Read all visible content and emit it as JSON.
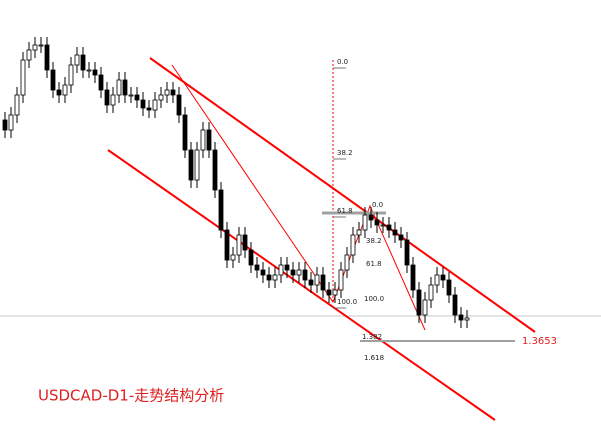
{
  "chart_data": {
    "type": "candlestick",
    "title": "USDCAD-D1-走势结构分析",
    "ylim": [
      1.3377,
      1.4676
    ],
    "level": 1.3653,
    "fib_1": {
      "levels": [
        "0.0",
        "38.2",
        "61.8",
        "100.0"
      ]
    },
    "fib_2": {
      "levels": [
        "0.0",
        "38.2",
        "61.8",
        "100.0",
        "1.382",
        "1.618"
      ]
    },
    "open": [
      1.4316,
      1.4286,
      1.4331,
      1.4391,
      1.4496,
      1.4526,
      1.4541,
      1.4541,
      1.4466,
      1.4406,
      1.4391,
      1.4421,
      1.4481,
      1.4511,
      1.4466,
      1.4466,
      1.4451,
      1.4406,
      1.4361,
      1.4391,
      1.4436,
      1.4391,
      1.4391,
      1.4376,
      1.4352,
      1.4346,
      1.4376,
      1.4391,
      1.4406,
      1.4391,
      1.4331,
      1.4226,
      1.4136,
      1.4226,
      1.4286,
      1.4226,
      1.4106,
      1.3986,
      1.3896,
      1.3911,
      1.3971,
      1.3926,
      1.3881,
      1.3866,
      1.3851,
      1.3836,
      1.3851,
      1.3881,
      1.3866,
      1.3851,
      1.3866,
      1.3836,
      1.3821,
      1.3851,
      1.3806,
      1.3791,
      1.3806,
      1.3866,
      1.3911,
      1.3971,
      1.3986,
      1.4031,
      1.4016,
      1.4001,
      1.4001,
      1.3986,
      1.3971,
      1.3956,
      1.3881,
      1.3806,
      1.3731,
      1.3776,
      1.3821,
      1.3851,
      1.3836,
      1.3791,
      1.3731,
      1.3716
    ],
    "high": [
      1.434,
      1.4355,
      1.4415,
      1.452,
      1.455,
      1.4565,
      1.4565,
      1.4565,
      1.449,
      1.443,
      1.4445,
      1.4505,
      1.4535,
      1.4535,
      1.449,
      1.449,
      1.4475,
      1.443,
      1.4415,
      1.446,
      1.446,
      1.4415,
      1.4415,
      1.44,
      1.4376,
      1.44,
      1.4415,
      1.443,
      1.443,
      1.4415,
      1.4355,
      1.425,
      1.425,
      1.431,
      1.431,
      1.425,
      1.413,
      1.401,
      1.3935,
      1.3995,
      1.3995,
      1.395,
      1.3905,
      1.389,
      1.3875,
      1.3875,
      1.3905,
      1.3905,
      1.389,
      1.389,
      1.389,
      1.386,
      1.3875,
      1.3875,
      1.383,
      1.383,
      1.389,
      1.3935,
      1.3995,
      1.401,
      1.4055,
      1.4055,
      1.404,
      1.4025,
      1.4025,
      1.401,
      1.3995,
      1.398,
      1.3905,
      1.383,
      1.38,
      1.3845,
      1.3875,
      1.3875,
      1.386,
      1.3815,
      1.3755,
      1.3746
    ],
    "low": [
      1.4262,
      1.4262,
      1.4307,
      1.4367,
      1.4472,
      1.4502,
      1.4517,
      1.4442,
      1.4382,
      1.4367,
      1.4367,
      1.4397,
      1.4457,
      1.4442,
      1.4442,
      1.4427,
      1.4382,
      1.4337,
      1.4337,
      1.4367,
      1.4367,
      1.4367,
      1.4352,
      1.4328,
      1.4322,
      1.4322,
      1.4352,
      1.4367,
      1.4367,
      1.4307,
      1.4202,
      1.4112,
      1.4112,
      1.4202,
      1.4202,
      1.4082,
      1.3962,
      1.3872,
      1.3872,
      1.3887,
      1.3902,
      1.3857,
      1.3842,
      1.3827,
      1.3812,
      1.3812,
      1.3827,
      1.3842,
      1.3827,
      1.3827,
      1.3812,
      1.3797,
      1.3797,
      1.3782,
      1.3767,
      1.3767,
      1.3782,
      1.3842,
      1.3887,
      1.3947,
      1.3962,
      1.3992,
      1.3977,
      1.3977,
      1.3962,
      1.3947,
      1.3932,
      1.3857,
      1.3782,
      1.3707,
      1.3707,
      1.3752,
      1.3797,
      1.3812,
      1.3767,
      1.3707,
      1.3692,
      1.3692
    ],
    "close": [
      1.4286,
      1.4331,
      1.4391,
      1.4496,
      1.4526,
      1.4541,
      1.4541,
      1.4466,
      1.4406,
      1.4391,
      1.4421,
      1.4481,
      1.4511,
      1.4466,
      1.4466,
      1.4451,
      1.4406,
      1.4361,
      1.4391,
      1.4436,
      1.4391,
      1.4391,
      1.4376,
      1.4352,
      1.4346,
      1.4376,
      1.4391,
      1.4406,
      1.4391,
      1.4331,
      1.4226,
      1.4136,
      1.4226,
      1.4286,
      1.4226,
      1.4106,
      1.3986,
      1.3896,
      1.3911,
      1.3971,
      1.3926,
      1.3881,
      1.3866,
      1.3851,
      1.3836,
      1.3851,
      1.3881,
      1.3866,
      1.3851,
      1.3866,
      1.3836,
      1.3821,
      1.3851,
      1.3806,
      1.3791,
      1.3806,
      1.3866,
      1.3911,
      1.3971,
      1.3986,
      1.4031,
      1.4016,
      1.4001,
      1.4001,
      1.3986,
      1.3971,
      1.3956,
      1.3881,
      1.3806,
      1.3731,
      1.3776,
      1.3821,
      1.3851,
      1.3836,
      1.3791,
      1.3731,
      1.3716,
      1.3722
    ]
  }
}
